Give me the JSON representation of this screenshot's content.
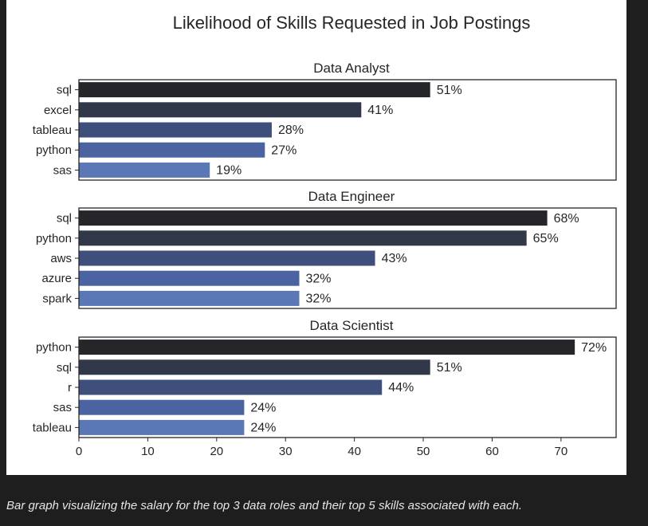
{
  "caption": "Bar graph visualizing the salary for the top 3 data roles and their top 5 skills associated with each.",
  "colors": {
    "page_background": "#1e1e1e",
    "figure_background": "#ffffff",
    "bar_palette": [
      "#26262a",
      "#313849",
      "#3f4f7c",
      "#4b63a0",
      "#5a78b5"
    ]
  },
  "chart_data": {
    "type": "bar",
    "orientation": "horizontal",
    "title": "Likelihood of Skills Requested in Job Postings",
    "xlim": [
      0,
      78
    ],
    "xticks": [
      0,
      10,
      20,
      30,
      40,
      50,
      60,
      70
    ],
    "grid": false,
    "value_suffix": "%",
    "panels": [
      {
        "title": "Data Analyst",
        "categories": [
          "sql",
          "excel",
          "tableau",
          "python",
          "sas"
        ],
        "values": [
          51,
          41,
          28,
          27,
          19
        ],
        "labels": [
          "51%",
          "41%",
          "28%",
          "27%",
          "19%"
        ]
      },
      {
        "title": "Data Engineer",
        "categories": [
          "sql",
          "python",
          "aws",
          "azure",
          "spark"
        ],
        "values": [
          68,
          65,
          43,
          32,
          32
        ],
        "labels": [
          "68%",
          "65%",
          "43%",
          "32%",
          "32%"
        ]
      },
      {
        "title": "Data Scientist",
        "categories": [
          "python",
          "sql",
          "r",
          "sas",
          "tableau"
        ],
        "values": [
          72,
          51,
          44,
          24,
          24
        ],
        "labels": [
          "72%",
          "51%",
          "44%",
          "24%",
          "24%"
        ]
      }
    ]
  }
}
